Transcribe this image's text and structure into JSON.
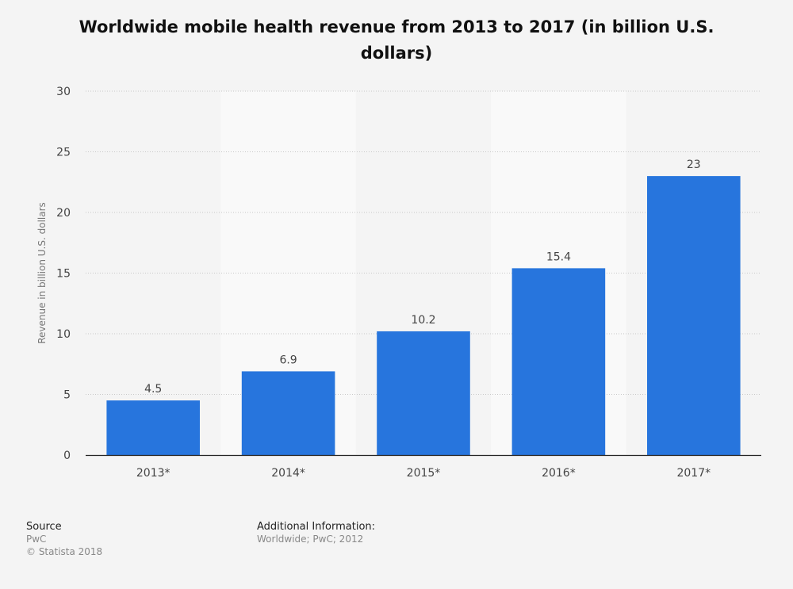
{
  "chart_data": {
    "type": "bar",
    "title": "Worldwide mobile health revenue from 2013 to 2017 (in billion U.S. dollars)",
    "xlabel": "",
    "ylabel": "Revenue in billion U.S. dollars",
    "categories": [
      "2013*",
      "2014*",
      "2015*",
      "2016*",
      "2017*"
    ],
    "values": [
      4.5,
      6.9,
      10.2,
      15.4,
      23
    ],
    "value_labels": [
      "4.5",
      "6.9",
      "10.2",
      "15.4",
      "23"
    ],
    "ylim": [
      0,
      30
    ],
    "yticks": [
      0,
      5,
      10,
      15,
      20,
      25,
      30
    ],
    "grid": true,
    "bar_color": "#2775dd"
  },
  "footer": {
    "source_heading": "Source",
    "source_lines": [
      "PwC",
      "© Statista 2018"
    ],
    "info_heading": "Additional Information:",
    "info_lines": [
      "Worldwide; PwC; 2012"
    ]
  }
}
